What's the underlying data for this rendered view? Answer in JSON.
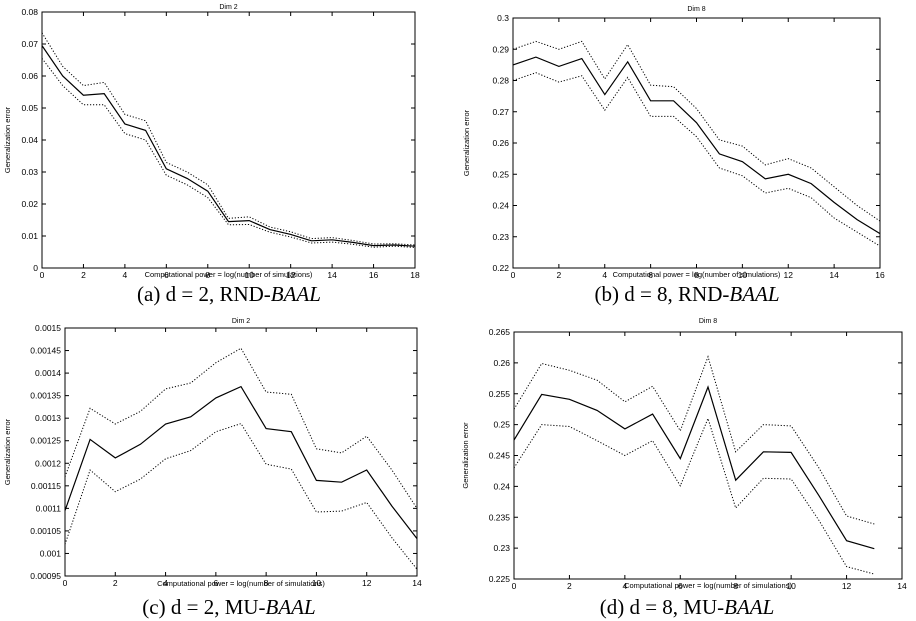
{
  "chart_data": [
    {
      "type": "line",
      "title": "Dim 2",
      "xlabel": "Computational power = log(number of simulations)",
      "ylabel": "Generalization error",
      "xlim": [
        0,
        18
      ],
      "ylim": [
        0,
        0.08
      ],
      "xticks": [
        0,
        2,
        4,
        6,
        8,
        10,
        12,
        14,
        16,
        18
      ],
      "yticks": [
        0,
        0.01,
        0.02,
        0.03,
        0.04,
        0.05,
        0.06,
        0.07,
        0.08
      ],
      "xticklabels": [
        "0",
        "2",
        "4",
        "6",
        "8",
        "10",
        "12",
        "14",
        "16",
        "18"
      ],
      "yticklabels": [
        "0",
        "0.01",
        "0.02",
        "0.03",
        "0.04",
        "0.05",
        "0.06",
        "0.07",
        "0.08"
      ],
      "grid": false,
      "caption_prefix": "(a) d = 2, RND-",
      "caption_italic": "BAAL",
      "x": [
        0,
        1,
        2,
        3,
        4,
        5,
        6,
        7,
        8,
        9,
        10,
        11,
        12,
        13,
        14,
        15,
        16,
        17,
        18
      ],
      "series": [
        {
          "style": "solid",
          "values": [
            0.0695,
            0.06,
            0.054,
            0.0545,
            0.045,
            0.043,
            0.031,
            0.028,
            0.024,
            0.0145,
            0.0148,
            0.012,
            0.0105,
            0.0085,
            0.0088,
            0.008,
            0.007,
            0.0072,
            0.0068
          ]
        },
        {
          "style": "dotted",
          "values": [
            0.0735,
            0.063,
            0.057,
            0.058,
            0.048,
            0.046,
            0.033,
            0.03,
            0.026,
            0.0155,
            0.016,
            0.0128,
            0.0113,
            0.0092,
            0.0095,
            0.0086,
            0.0075,
            0.0076,
            0.0072
          ]
        },
        {
          "style": "dotted",
          "values": [
            0.0655,
            0.057,
            0.051,
            0.051,
            0.042,
            0.04,
            0.029,
            0.026,
            0.022,
            0.0135,
            0.0136,
            0.0112,
            0.0097,
            0.0078,
            0.0081,
            0.0074,
            0.0065,
            0.0068,
            0.0064
          ]
        }
      ]
    },
    {
      "type": "line",
      "title": "Dim 8",
      "xlabel": "Computational power = log(number of simulations)",
      "ylabel": "Generalization error",
      "xlim": [
        0,
        16
      ],
      "ylim": [
        0.22,
        0.3
      ],
      "xticks": [
        0,
        2,
        4,
        6,
        8,
        10,
        12,
        14,
        16
      ],
      "yticks": [
        0.22,
        0.23,
        0.24,
        0.25,
        0.26,
        0.27,
        0.28,
        0.29,
        0.3
      ],
      "xticklabels": [
        "0",
        "2",
        "4",
        "6",
        "8",
        "10",
        "12",
        "14",
        "16"
      ],
      "yticklabels": [
        "0.22",
        "0.23",
        "0.24",
        "0.25",
        "0.26",
        "0.27",
        "0.28",
        "0.29",
        "0.3"
      ],
      "grid": false,
      "caption_prefix": "(b) d = 8, RND-",
      "caption_italic": "BAAL",
      "x": [
        0,
        1,
        2,
        3,
        4,
        5,
        6,
        7,
        8,
        9,
        10,
        11,
        12,
        13,
        14,
        15,
        16
      ],
      "series": [
        {
          "style": "solid",
          "values": [
            0.285,
            0.2875,
            0.2845,
            0.287,
            0.2755,
            0.286,
            0.2735,
            0.2735,
            0.2665,
            0.2565,
            0.254,
            0.2485,
            0.25,
            0.247,
            0.241,
            0.2355,
            0.231
          ]
        },
        {
          "style": "dotted",
          "values": [
            0.29,
            0.2925,
            0.29,
            0.2925,
            0.2805,
            0.2915,
            0.2785,
            0.278,
            0.271,
            0.261,
            0.259,
            0.253,
            0.255,
            0.252,
            0.246,
            0.24,
            0.235
          ]
        },
        {
          "style": "dotted",
          "values": [
            0.28,
            0.2825,
            0.2795,
            0.2815,
            0.2705,
            0.281,
            0.2685,
            0.2685,
            0.262,
            0.252,
            0.2495,
            0.244,
            0.2455,
            0.2425,
            0.236,
            0.2315,
            0.227
          ]
        }
      ]
    },
    {
      "type": "line",
      "title": "Dim 2",
      "xlabel": "Computational power = log(number of simulations)",
      "ylabel": "Generalization error",
      "xlim": [
        0,
        14
      ],
      "ylim": [
        0.00095,
        0.0015
      ],
      "xticks": [
        0,
        2,
        4,
        6,
        8,
        10,
        12,
        14
      ],
      "yticks": [
        0.00095,
        0.001,
        0.00105,
        0.0011,
        0.00115,
        0.0012,
        0.00125,
        0.0013,
        0.00135,
        0.0014,
        0.00145,
        0.0015
      ],
      "xticklabels": [
        "0",
        "2",
        "4",
        "6",
        "8",
        "10",
        "12",
        "14"
      ],
      "yticklabels": [
        "0.00095",
        "0.001",
        "0.00105",
        "0.0011",
        "0.00115",
        "0.0012",
        "0.00125",
        "0.0013",
        "0.00135",
        "0.0014",
        "0.00145",
        "0.0015"
      ],
      "grid": false,
      "caption_prefix": "(c) d = 2, MU-",
      "caption_italic": "BAAL",
      "x": [
        0,
        1,
        2,
        3,
        4,
        5,
        6,
        7,
        8,
        9,
        10,
        11,
        12,
        13,
        14
      ],
      "series": [
        {
          "style": "solid",
          "values": [
            0.001095,
            0.001253,
            0.001212,
            0.001242,
            0.001287,
            0.001303,
            0.001345,
            0.00137,
            0.001277,
            0.00127,
            0.001162,
            0.001158,
            0.001185,
            0.001105,
            0.001033
          ]
        },
        {
          "style": "dotted",
          "values": [
            0.00117,
            0.001322,
            0.001287,
            0.001315,
            0.001365,
            0.001378,
            0.001423,
            0.001455,
            0.001358,
            0.001353,
            0.001232,
            0.001223,
            0.00126,
            0.001185,
            0.0011
          ]
        },
        {
          "style": "dotted",
          "values": [
            0.00102,
            0.001185,
            0.001137,
            0.001165,
            0.00121,
            0.001228,
            0.00127,
            0.001288,
            0.001198,
            0.001187,
            0.001092,
            0.001094,
            0.001113,
            0.001035,
            0.000965
          ]
        }
      ]
    },
    {
      "type": "line",
      "title": "Dim 8",
      "xlabel": "Computational power = log(number of simulations)",
      "ylabel": "Generalization error",
      "xlim": [
        0,
        14
      ],
      "ylim": [
        0.225,
        0.265
      ],
      "xticks": [
        0,
        2,
        4,
        6,
        8,
        10,
        12,
        14
      ],
      "yticks": [
        0.225,
        0.23,
        0.235,
        0.24,
        0.245,
        0.25,
        0.255,
        0.26,
        0.265
      ],
      "xticklabels": [
        "0",
        "2",
        "4",
        "6",
        "8",
        "10",
        "12",
        "14"
      ],
      "yticklabels": [
        "0.225",
        "0.23",
        "0.235",
        "0.24",
        "0.245",
        "0.25",
        "0.255",
        "0.26",
        "0.265"
      ],
      "grid": false,
      "caption_prefix": "(d) d = 8, MU-",
      "caption_italic": "BAAL",
      "x": [
        0,
        1,
        2,
        3,
        4,
        5,
        6,
        7,
        8,
        9,
        10,
        11,
        12,
        13
      ],
      "series": [
        {
          "style": "solid",
          "values": [
            0.2475,
            0.2549,
            0.2541,
            0.2523,
            0.2493,
            0.2517,
            0.2445,
            0.2561,
            0.241,
            0.2456,
            0.2455,
            0.2385,
            0.2312,
            0.2299
          ]
        },
        {
          "style": "dotted",
          "values": [
            0.2525,
            0.2599,
            0.2588,
            0.2572,
            0.2537,
            0.2562,
            0.249,
            0.261,
            0.2456,
            0.25,
            0.2498,
            0.243,
            0.2352,
            0.2339
          ]
        },
        {
          "style": "dotted",
          "values": [
            0.243,
            0.25,
            0.2497,
            0.2474,
            0.245,
            0.2474,
            0.2401,
            0.251,
            0.2365,
            0.2413,
            0.2412,
            0.2345,
            0.227,
            0.2258
          ]
        }
      ]
    }
  ]
}
